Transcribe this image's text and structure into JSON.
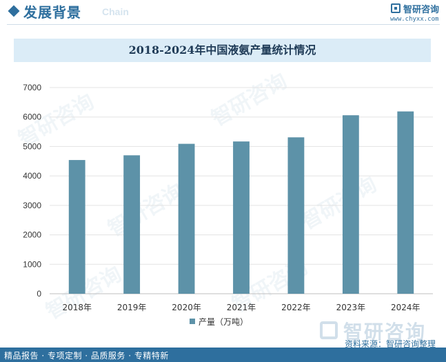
{
  "header": {
    "title": "发展背景",
    "subtitle": "Chain"
  },
  "brand": {
    "name": "智研咨询",
    "url": "www.chyxx.com",
    "color": "#2e6f9e"
  },
  "watermark": {
    "text": "智研咨询"
  },
  "chart_data": {
    "type": "bar",
    "title": "2018-2024年中国液氨产量统计情况",
    "categories": [
      "2018年",
      "2019年",
      "2020年",
      "2021年",
      "2022年",
      "2023年",
      "2024年"
    ],
    "series": [
      {
        "name": "产量（万吨）",
        "values": [
          4540,
          4700,
          5090,
          5170,
          5310,
          6060,
          6190
        ],
        "color": "#5d92a8"
      }
    ],
    "ylim": [
      0,
      7000
    ],
    "yticks": [
      "0",
      "1000",
      "2000",
      "3000",
      "4000",
      "5000",
      "6000",
      "7000"
    ],
    "grid": true,
    "legend": "bottom-center"
  },
  "footer": {
    "left": "精品报告 · 专项定制 · 品质服务 · 专精特新",
    "source": "资料来源：智研咨询整理"
  }
}
